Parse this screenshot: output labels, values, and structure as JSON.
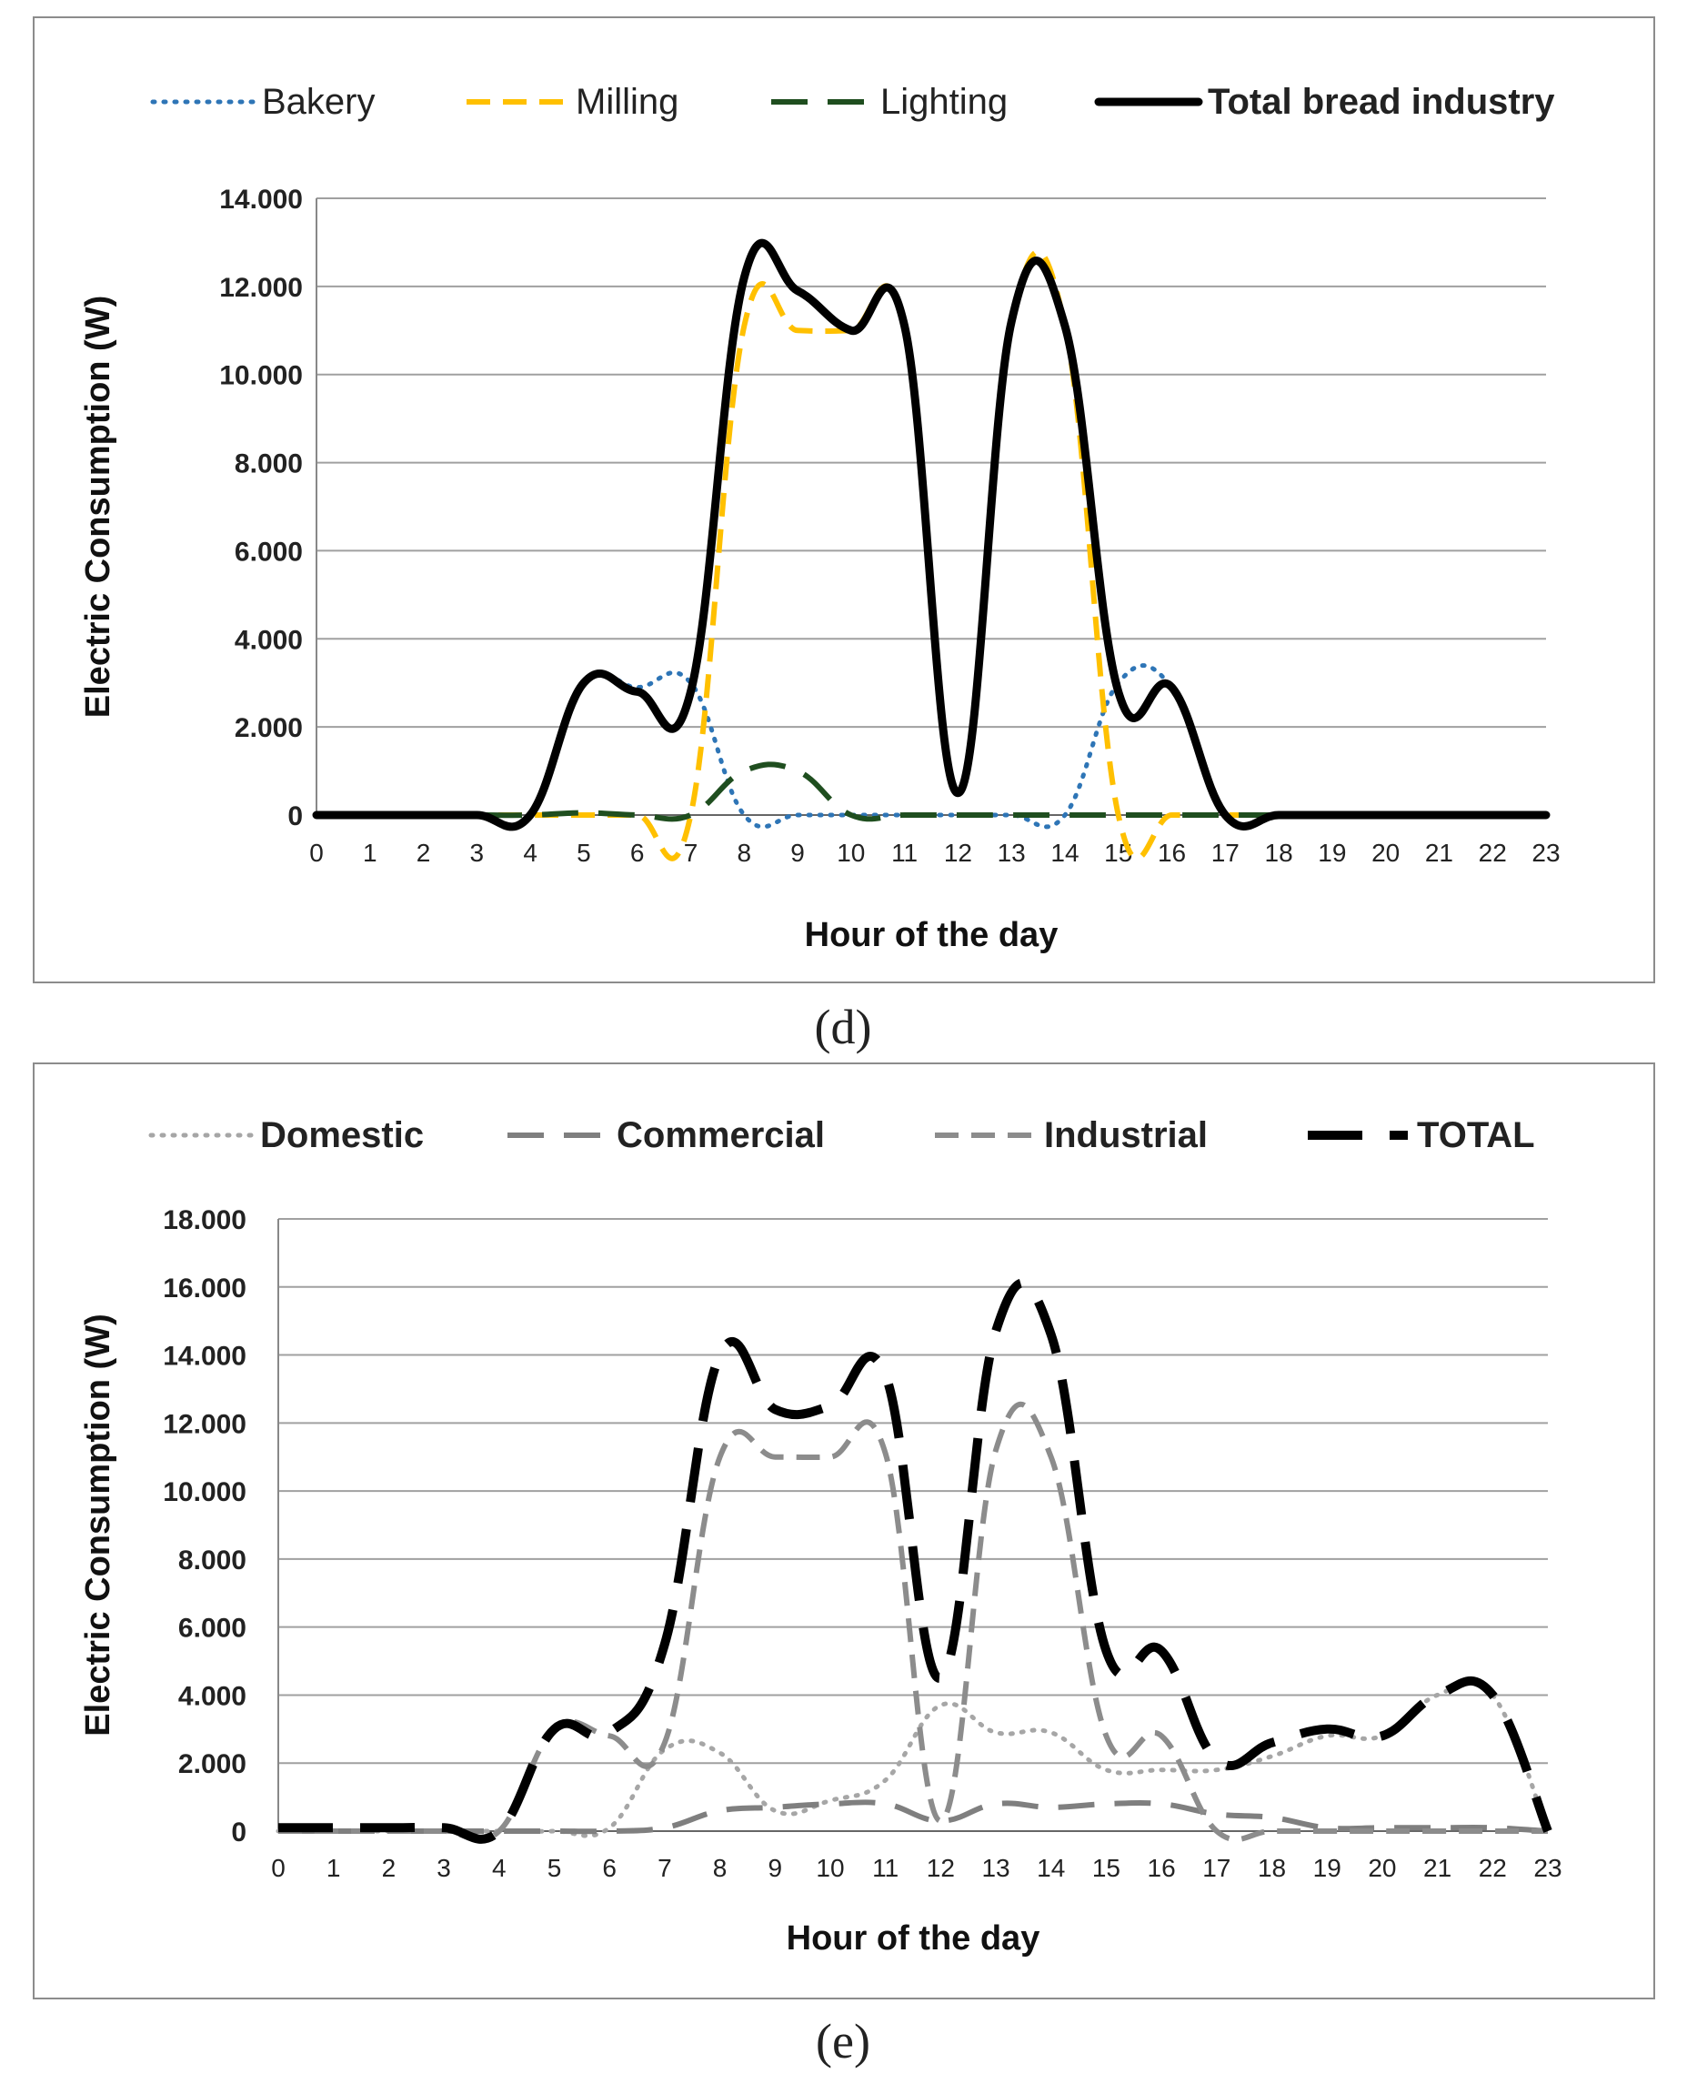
{
  "captions": {
    "d": "(d)",
    "e": "(e)"
  },
  "chart_data": [
    {
      "id": "d",
      "type": "line",
      "title": "",
      "xlabel": "Hour of the day",
      "ylabel": "Electric Consumption (W)",
      "xlim": [
        0,
        23
      ],
      "ylim": [
        0,
        14000
      ],
      "y_ticks": [
        0,
        2000,
        4000,
        6000,
        8000,
        10000,
        12000,
        14000
      ],
      "y_tick_labels": [
        "0",
        "2.000",
        "4.000",
        "6.000",
        "8.000",
        "10.000",
        "12.000",
        "14.000"
      ],
      "x_tick_labels": [
        "0",
        "1",
        "2",
        "3",
        "4",
        "5",
        "6",
        "7",
        "8",
        "9",
        "10",
        "11",
        "12",
        "13",
        "14",
        "15",
        "16",
        "17",
        "18",
        "19",
        "20",
        "21",
        "22",
        "23"
      ],
      "grid": "horizontal",
      "legend_position": "top",
      "series": [
        {
          "name": "Bakery",
          "color": "#2e75b6",
          "dash": "dot",
          "bold_label": false,
          "points": [
            [
              0,
              0
            ],
            [
              1,
              0
            ],
            [
              2,
              0
            ],
            [
              3,
              0
            ],
            [
              4,
              0
            ],
            [
              5,
              3000
            ],
            [
              6,
              2900
            ],
            [
              7,
              3000
            ],
            [
              8,
              0
            ],
            [
              9,
              0
            ],
            [
              10,
              0
            ],
            [
              11,
              0
            ],
            [
              12,
              0
            ],
            [
              13,
              0
            ],
            [
              14,
              0
            ],
            [
              15,
              3000
            ],
            [
              16,
              2900
            ],
            [
              17,
              0
            ],
            [
              18,
              0
            ],
            [
              19,
              0
            ],
            [
              20,
              0
            ],
            [
              21,
              0
            ],
            [
              22,
              0
            ],
            [
              23,
              0
            ]
          ]
        },
        {
          "name": "Milling",
          "color": "#ffc000",
          "dash": "dash",
          "bold_label": false,
          "points": [
            [
              0,
              0
            ],
            [
              1,
              0
            ],
            [
              2,
              0
            ],
            [
              3,
              0
            ],
            [
              4,
              0
            ],
            [
              5,
              0
            ],
            [
              6,
              0
            ],
            [
              7,
              0
            ],
            [
              8,
              11100
            ],
            [
              9,
              11000
            ],
            [
              10,
              11000
            ],
            [
              11,
              11100
            ],
            [
              12,
              500
            ],
            [
              13,
              11200
            ],
            [
              14,
              11100
            ],
            [
              15,
              0
            ],
            [
              16,
              0
            ],
            [
              17,
              0
            ],
            [
              18,
              0
            ],
            [
              19,
              0
            ],
            [
              20,
              0
            ],
            [
              21,
              0
            ],
            [
              22,
              0
            ],
            [
              23,
              0
            ]
          ]
        },
        {
          "name": "Lighting",
          "color": "#1f4e1f",
          "dash": "longdash",
          "bold_label": false,
          "points": [
            [
              0,
              0
            ],
            [
              1,
              0
            ],
            [
              2,
              0
            ],
            [
              3,
              0
            ],
            [
              4,
              0
            ],
            [
              5,
              50
            ],
            [
              6,
              0
            ],
            [
              7,
              0
            ],
            [
              8,
              1000
            ],
            [
              9,
              1000
            ],
            [
              10,
              0
            ],
            [
              11,
              0
            ],
            [
              12,
              0
            ],
            [
              13,
              0
            ],
            [
              14,
              0
            ],
            [
              15,
              0
            ],
            [
              16,
              0
            ],
            [
              17,
              0
            ],
            [
              18,
              0
            ],
            [
              19,
              0
            ],
            [
              20,
              0
            ],
            [
              21,
              0
            ],
            [
              22,
              0
            ],
            [
              23,
              0
            ]
          ]
        },
        {
          "name": "Total bread industry",
          "color": "#000000",
          "dash": "solid",
          "bold_label": true,
          "points": [
            [
              0,
              0
            ],
            [
              1,
              0
            ],
            [
              2,
              0
            ],
            [
              3,
              0
            ],
            [
              4,
              0
            ],
            [
              5,
              3000
            ],
            [
              6,
              2800
            ],
            [
              7,
              2800
            ],
            [
              8,
              12200
            ],
            [
              9,
              11900
            ],
            [
              10,
              11000
            ],
            [
              11,
              11100
            ],
            [
              12,
              500
            ],
            [
              13,
              11200
            ],
            [
              14,
              11100
            ],
            [
              15,
              2800
            ],
            [
              16,
              2900
            ],
            [
              17,
              0
            ],
            [
              18,
              0
            ],
            [
              19,
              0
            ],
            [
              20,
              0
            ],
            [
              21,
              0
            ],
            [
              22,
              0
            ],
            [
              23,
              0
            ]
          ]
        }
      ]
    },
    {
      "id": "e",
      "type": "line",
      "title": "",
      "xlabel": "Hour of the day",
      "ylabel": "Electric Consumption (W)",
      "xlim": [
        0,
        23
      ],
      "ylim": [
        0,
        18000
      ],
      "y_ticks": [
        0,
        2000,
        4000,
        6000,
        8000,
        10000,
        12000,
        14000,
        16000,
        18000
      ],
      "y_tick_labels": [
        "0",
        "2.000",
        "4.000",
        "6.000",
        "8.000",
        "10.000",
        "12.000",
        "14.000",
        "16.000",
        "18.000"
      ],
      "x_tick_labels": [
        "0",
        "1",
        "2",
        "3",
        "4",
        "5",
        "6",
        "7",
        "8",
        "9",
        "10",
        "11",
        "12",
        "13",
        "14",
        "15",
        "16",
        "17",
        "18",
        "19",
        "20",
        "21",
        "22",
        "23"
      ],
      "grid": "horizontal",
      "legend_position": "top",
      "series": [
        {
          "name": "Domestic",
          "color": "#a6a6a6",
          "dash": "dot",
          "bold_label": true,
          "points": [
            [
              0,
              0
            ],
            [
              1,
              0
            ],
            [
              2,
              0
            ],
            [
              3,
              0
            ],
            [
              4,
              0
            ],
            [
              5,
              0
            ],
            [
              6,
              100
            ],
            [
              7,
              2400
            ],
            [
              8,
              2300
            ],
            [
              9,
              600
            ],
            [
              10,
              900
            ],
            [
              11,
              1500
            ],
            [
              12,
              3700
            ],
            [
              13,
              2900
            ],
            [
              14,
              2900
            ],
            [
              15,
              1800
            ],
            [
              16,
              1800
            ],
            [
              17,
              1800
            ],
            [
              18,
              2200
            ],
            [
              19,
              2800
            ],
            [
              20,
              2800
            ],
            [
              21,
              4000
            ],
            [
              22,
              4000
            ],
            [
              23,
              0
            ]
          ]
        },
        {
          "name": "Commercial",
          "color": "#7f7f7f",
          "dash": "longdash",
          "bold_label": true,
          "points": [
            [
              0,
              0
            ],
            [
              1,
              0
            ],
            [
              2,
              0
            ],
            [
              3,
              0
            ],
            [
              4,
              0
            ],
            [
              5,
              0
            ],
            [
              6,
              0
            ],
            [
              7,
              100
            ],
            [
              8,
              600
            ],
            [
              9,
              700
            ],
            [
              10,
              800
            ],
            [
              11,
              800
            ],
            [
              12,
              300
            ],
            [
              13,
              800
            ],
            [
              14,
              700
            ],
            [
              15,
              800
            ],
            [
              16,
              800
            ],
            [
              17,
              500
            ],
            [
              18,
              400
            ],
            [
              19,
              100
            ],
            [
              20,
              100
            ],
            [
              21,
              100
            ],
            [
              22,
              100
            ],
            [
              23,
              0
            ]
          ]
        },
        {
          "name": "Industrial",
          "color": "#8c8c8c",
          "dash": "dash",
          "bold_label": true,
          "points": [
            [
              0,
              0
            ],
            [
              1,
              0
            ],
            [
              2,
              0
            ],
            [
              3,
              0
            ],
            [
              4,
              0
            ],
            [
              5,
              3000
            ],
            [
              6,
              2800
            ],
            [
              7,
              2600
            ],
            [
              8,
              11000
            ],
            [
              9,
              11000
            ],
            [
              10,
              11000
            ],
            [
              11,
              11100
            ],
            [
              12,
              300
            ],
            [
              13,
              11200
            ],
            [
              14,
              11000
            ],
            [
              15,
              2800
            ],
            [
              16,
              2800
            ],
            [
              17,
              0
            ],
            [
              18,
              0
            ],
            [
              19,
              0
            ],
            [
              20,
              0
            ],
            [
              21,
              0
            ],
            [
              22,
              0
            ],
            [
              23,
              0
            ]
          ]
        },
        {
          "name": "TOTAL",
          "color": "#000000",
          "dash": "heavydash",
          "bold_label": true,
          "points": [
            [
              0,
              100
            ],
            [
              1,
              100
            ],
            [
              2,
              100
            ],
            [
              3,
              100
            ],
            [
              4,
              0
            ],
            [
              5,
              3000
            ],
            [
              6,
              2900
            ],
            [
              7,
              5500
            ],
            [
              8,
              14000
            ],
            [
              9,
              12400
            ],
            [
              10,
              12500
            ],
            [
              11,
              13400
            ],
            [
              12,
              4500
            ],
            [
              13,
              14700
            ],
            [
              14,
              14600
            ],
            [
              15,
              5300
            ],
            [
              16,
              5300
            ],
            [
              17,
              2100
            ],
            [
              18,
              2600
            ],
            [
              19,
              3000
            ],
            [
              20,
              2800
            ],
            [
              21,
              4000
            ],
            [
              22,
              4000
            ],
            [
              23,
              0
            ]
          ]
        }
      ]
    }
  ]
}
